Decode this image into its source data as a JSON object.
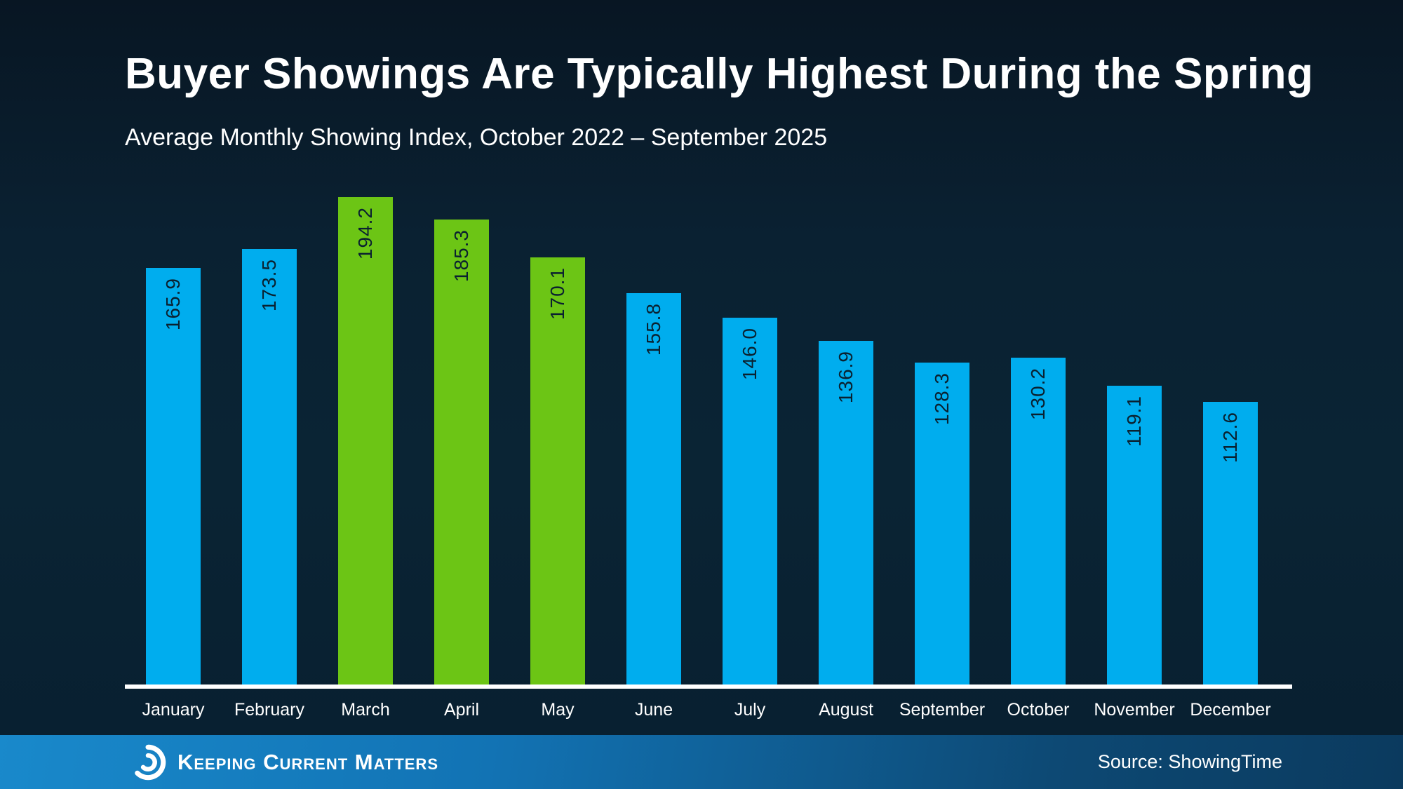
{
  "slide": {
    "title": "Buyer Showings Are Typically Highest During the Spring",
    "subtitle": "Average Monthly Showing Index, October 2022 – September 2025"
  },
  "chart_data": {
    "type": "bar",
    "title": "Buyer Showings Are Typically Highest During the Spring",
    "subtitle": "Average Monthly Showing Index, October 2022 – September 2025",
    "categories": [
      "January",
      "February",
      "March",
      "April",
      "May",
      "June",
      "July",
      "August",
      "September",
      "October",
      "November",
      "December"
    ],
    "values": [
      165.9,
      173.5,
      194.2,
      185.3,
      170.1,
      155.8,
      146.0,
      136.9,
      128.3,
      130.2,
      119.1,
      112.6
    ],
    "value_labels": [
      "165.9",
      "173.5",
      "194.2",
      "185.3",
      "170.1",
      "155.8",
      "146.0",
      "136.9",
      "128.3",
      "130.2",
      "119.1",
      "112.6"
    ],
    "highlight_categories": [
      "March",
      "April",
      "May"
    ],
    "colors": {
      "bar_default": "#00adee",
      "bar_highlight": "#6cc515",
      "value_label": "#0a2130",
      "axis_line": "#ffffff",
      "tick_label": "#ffffff"
    },
    "xlabel": "",
    "ylabel": "",
    "ylim": [
      0,
      273
    ],
    "grid": false,
    "legend": "none",
    "value_label_rotation": "vertical-bottom-to-top"
  },
  "footer": {
    "brand": "Keeping Current Matters",
    "logo_icon": "kcm-swirl-icon",
    "source": "Source: ShowingTime"
  }
}
